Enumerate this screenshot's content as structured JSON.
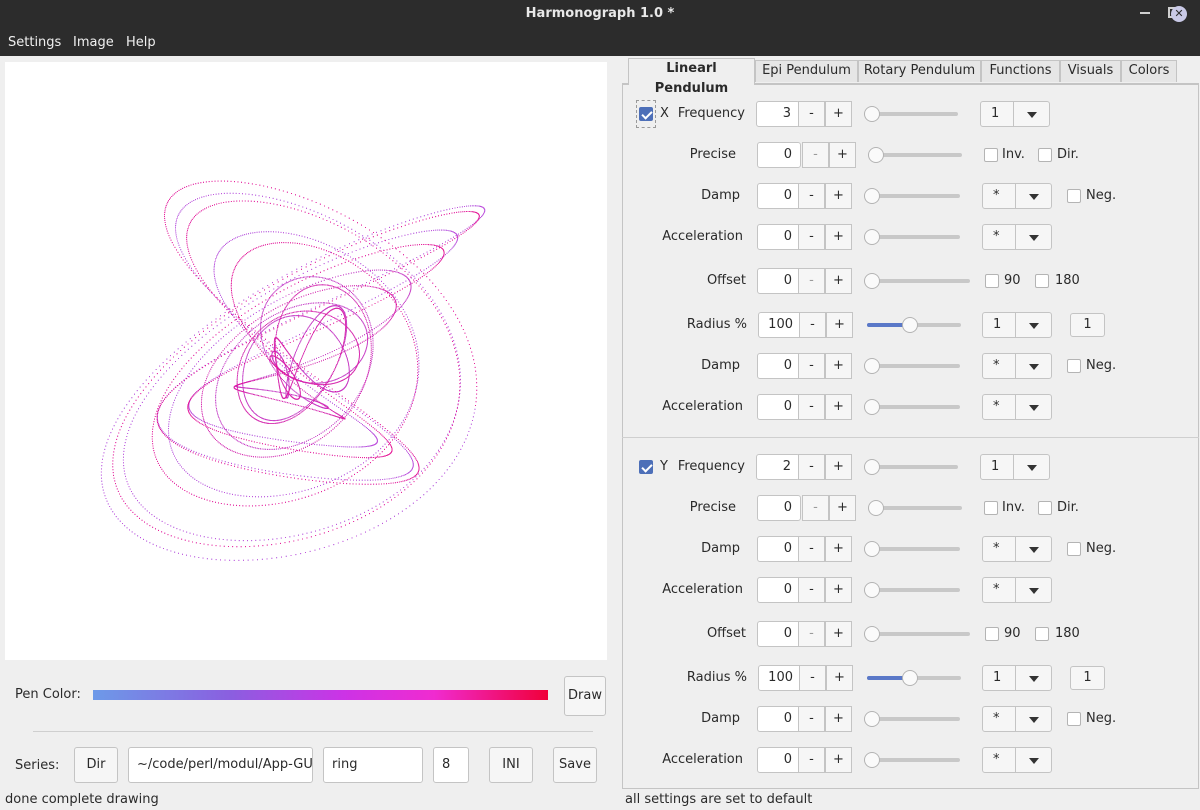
{
  "window": {
    "title": "Harmonograph 1.0 *"
  },
  "menu": [
    "Settings",
    "Image",
    "Help"
  ],
  "colors": {
    "pen_start": "#6d9ae8",
    "pen_mid": "#cc33e6",
    "pen_end": "#f0003a",
    "accent": "#4d6fb8"
  },
  "left": {
    "pen_color_label": "Pen Color:",
    "draw_label": "Draw",
    "series_label": "Series:",
    "dir_label": "Dir",
    "path_value": "~/code/perl/modul/App-GU",
    "name_value": "ring",
    "count_value": "8",
    "ini_label": "INI",
    "save_label": "Save"
  },
  "status": {
    "left": "done complete drawing",
    "right": "all settings are set to default"
  },
  "tabs": [
    "Linearl Pendulum",
    "Epi Pendulum",
    "Rotary Pendulum",
    "Functions",
    "Visuals",
    "Colors"
  ],
  "pendulum": {
    "x": {
      "axis": "X",
      "enabled": true,
      "frequency_label": "Frequency",
      "frequency": "3",
      "frequency_combo": "1",
      "precise_label": "Precise",
      "precise": "0",
      "inv_label": "Inv.",
      "dir_label": "Dir.",
      "damp_label": "Damp",
      "damp": "0",
      "damp_combo": "*",
      "neg_label": "Neg.",
      "accel_label": "Acceleration",
      "accel": "0",
      "accel_combo": "*",
      "offset_label": "Offset",
      "offset": "0",
      "deg90_label": "90",
      "deg180_label": "180",
      "radius_label": "Radius %",
      "radius": "100",
      "radius_combo": "1",
      "radius_box": "1",
      "rdamp_label": "Damp",
      "rdamp": "0",
      "rdamp_combo": "*",
      "rneg_label": "Neg.",
      "raccel_label": "Acceleration",
      "raccel": "0",
      "raccel_combo": "*"
    },
    "y": {
      "axis": "Y",
      "enabled": true,
      "frequency_label": "Frequency",
      "frequency": "2",
      "frequency_combo": "1",
      "precise_label": "Precise",
      "precise": "0",
      "inv_label": "Inv.",
      "dir_label": "Dir.",
      "damp_label": "Damp",
      "damp": "0",
      "damp_combo": "*",
      "neg_label": "Neg.",
      "accel_label": "Acceleration",
      "accel": "0",
      "accel_combo": "*",
      "offset_label": "Offset",
      "offset": "0",
      "deg90_label": "90",
      "deg180_label": "180",
      "radius_label": "Radius %",
      "radius": "100",
      "radius_combo": "1",
      "radius_box": "1",
      "rdamp_label": "Damp",
      "rdamp": "0",
      "rdamp_combo": "*",
      "rneg_label": "Neg.",
      "raccel_label": "Acceleration",
      "raccel": "0",
      "raccel_combo": "*"
    }
  },
  "step": {
    "minus": "-",
    "plus": "+"
  }
}
